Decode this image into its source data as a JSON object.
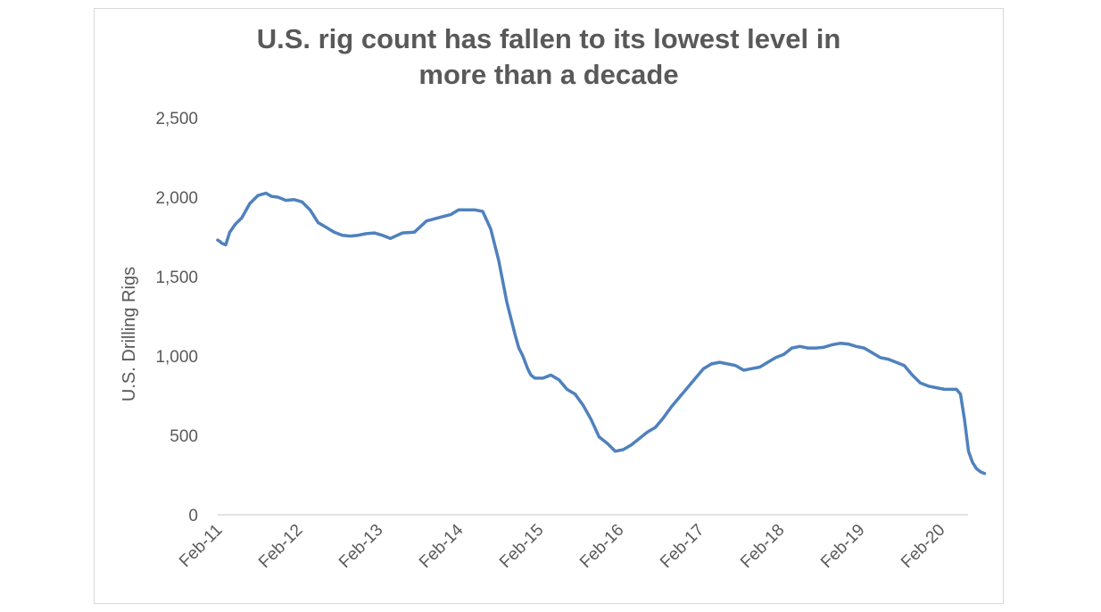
{
  "chart_data": {
    "type": "line",
    "title_lines": [
      "U.S. rig count has fallen to its lowest level in",
      "more than a decade"
    ],
    "xlabel": "",
    "ylabel": "U.S. Drilling Rigs",
    "ylim": [
      0,
      2500
    ],
    "yticks": [
      "0",
      "500",
      "1,000",
      "1,500",
      "2,000",
      "2,500"
    ],
    "ytick_values": [
      0,
      500,
      1000,
      1500,
      2000,
      2500
    ],
    "xticks": [
      "Feb-11",
      "Feb-12",
      "Feb-13",
      "Feb-14",
      "Feb-15",
      "Feb-16",
      "Feb-17",
      "Feb-18",
      "Feb-19",
      "Feb-20"
    ],
    "grid": false,
    "line_color": "#4f81bd",
    "series": [
      {
        "x": [
          0,
          0.03,
          0.05,
          0.1,
          0.15,
          0.22,
          0.3,
          0.4,
          0.5,
          0.6,
          0.67,
          0.75,
          0.85,
          0.95,
          1.05,
          1.15,
          1.25,
          1.35,
          1.45,
          1.55,
          1.65,
          1.75,
          1.85,
          1.95,
          2.05,
          2.15,
          2.3,
          2.45,
          2.6,
          2.75,
          2.9,
          3.0,
          3.1,
          3.2,
          3.3,
          3.4,
          3.5,
          3.6,
          3.7,
          3.75,
          3.8,
          3.83,
          3.86,
          3.88,
          3.9,
          3.95,
          4.0,
          4.05,
          4.15,
          4.25,
          4.35,
          4.45,
          4.55,
          4.65,
          4.75,
          4.85,
          4.95,
          5.05,
          5.15,
          5.25,
          5.35,
          5.45,
          5.55,
          5.65,
          5.75,
          5.85,
          5.95,
          6.05,
          6.15,
          6.25,
          6.35,
          6.45,
          6.55,
          6.65,
          6.75,
          6.85,
          6.95,
          7.05,
          7.15,
          7.25,
          7.35,
          7.45,
          7.55,
          7.65,
          7.75,
          7.85,
          7.95,
          8.05,
          8.15,
          8.25,
          8.35,
          8.45,
          8.55,
          8.65,
          8.75,
          8.85,
          8.95,
          9.05,
          9.15,
          9.2,
          9.25,
          9.3,
          9.35,
          9.4,
          9.45,
          9.5,
          9.55
        ],
        "values": [
          1730,
          1720,
          1710,
          1700,
          1780,
          1830,
          1870,
          1960,
          2010,
          2025,
          2005,
          2000,
          1980,
          1985,
          1970,
          1920,
          1840,
          1810,
          1780,
          1760,
          1755,
          1760,
          1770,
          1775,
          1760,
          1740,
          1775,
          1780,
          1850,
          1870,
          1890,
          1920,
          1920,
          1920,
          1910,
          1800,
          1600,
          1340,
          1140,
          1050,
          1000,
          960,
          920,
          900,
          880,
          860,
          860,
          860,
          880,
          850,
          790,
          760,
          690,
          600,
          490,
          450,
          400,
          410,
          440,
          480,
          520,
          550,
          610,
          680,
          740,
          800,
          860,
          920,
          950,
          960,
          950,
          940,
          910,
          920,
          930,
          960,
          990,
          1010,
          1050,
          1060,
          1050,
          1050,
          1055,
          1070,
          1080,
          1075,
          1060,
          1050,
          1020,
          990,
          980,
          960,
          940,
          880,
          830,
          810,
          800,
          790,
          790,
          790,
          760,
          600,
          400,
          330,
          290,
          270,
          260
        ]
      }
    ]
  }
}
